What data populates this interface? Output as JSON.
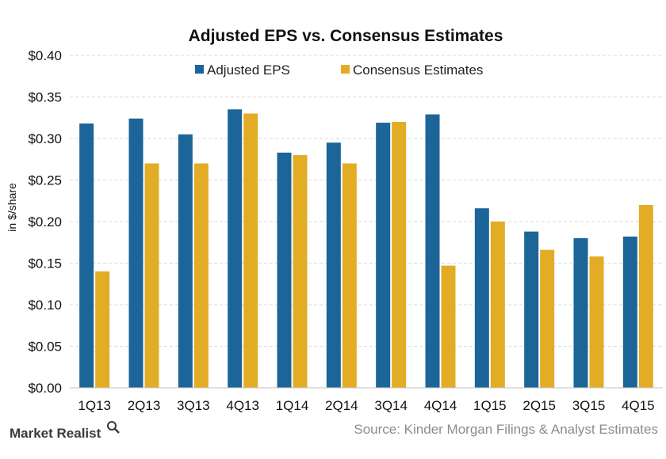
{
  "brand": {
    "name": "Market Realist",
    "icon": "magnifier-icon"
  },
  "source": "Source: Kinder Morgan Filings & Analyst Estimates",
  "colors": {
    "adjusted": "#1c6598",
    "consensus": "#e3ac25",
    "grid": "#d9d9d9"
  },
  "chart_data": {
    "type": "bar",
    "title": "Adjusted EPS vs. Consensus Estimates",
    "xlabel": "",
    "ylabel": "in $/share",
    "ylim": [
      0,
      0.4
    ],
    "yticks": [
      0.0,
      0.05,
      0.1,
      0.15,
      0.2,
      0.25,
      0.3,
      0.35,
      0.4
    ],
    "ytick_labels": [
      "$0.00",
      "$0.05",
      "$0.10",
      "$0.15",
      "$0.20",
      "$0.25",
      "$0.30",
      "$0.35",
      "$0.40"
    ],
    "grid": true,
    "legend": "top-center",
    "categories": [
      "1Q13",
      "2Q13",
      "3Q13",
      "4Q13",
      "1Q14",
      "2Q14",
      "3Q14",
      "4Q14",
      "1Q15",
      "2Q15",
      "3Q15",
      "4Q15"
    ],
    "series": [
      {
        "name": "Adjusted EPS",
        "color": "#1c6598",
        "values": [
          0.318,
          0.324,
          0.305,
          0.335,
          0.283,
          0.295,
          0.319,
          0.329,
          0.216,
          0.188,
          0.18,
          0.182
        ]
      },
      {
        "name": "Consensus Estimates",
        "color": "#e3ac25",
        "values": [
          0.14,
          0.27,
          0.27,
          0.33,
          0.28,
          0.27,
          0.32,
          0.147,
          0.2,
          0.166,
          0.158,
          0.22
        ]
      }
    ]
  }
}
